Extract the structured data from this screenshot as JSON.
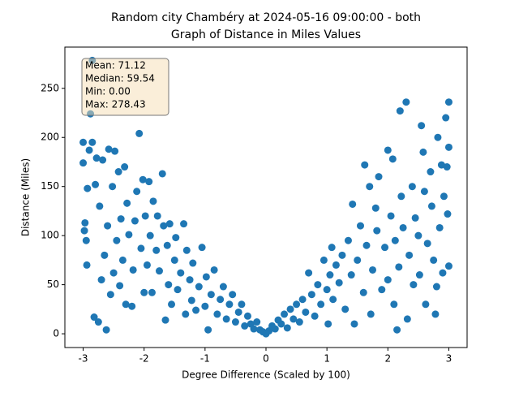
{
  "chart_data": {
    "type": "scatter",
    "title": "Random city Chambéry at 2024-05-16 09:00:00  - both",
    "subtitle": "Graph of Distance in Miles Values",
    "x_label": "Degree Difference (Scaled by 100)",
    "y_label": "Distance (Miles)",
    "annotation_lines": [
      "Mean: 71.12",
      "Median: 59.54",
      "Min: 0.00",
      "Max: 278.43"
    ],
    "color": "#1f77b4",
    "xlim": [
      -3.3,
      3.3
    ],
    "ylim": [
      -14,
      292
    ],
    "xticks": [
      -3,
      -2,
      -1,
      0,
      1,
      2,
      3
    ],
    "yticks": [
      0,
      50,
      100,
      150,
      200,
      250
    ],
    "x": [
      -3,
      -3,
      -2.98,
      -2.97,
      -2.95,
      -2.94,
      -2.93,
      -2.9,
      -2.88,
      -2.85,
      -2.85,
      -2.82,
      -2.8,
      -2.78,
      -2.75,
      -2.73,
      -2.7,
      -2.68,
      -2.65,
      -2.62,
      -2.6,
      -2.58,
      -2.55,
      -2.52,
      -2.5,
      -2.48,
      -2.45,
      -2.42,
      -2.4,
      -2.38,
      -2.35,
      -2.32,
      -2.3,
      -2.28,
      -2.25,
      -2.2,
      -2.18,
      -2.15,
      -2.12,
      -2.08,
      -2.05,
      -2.02,
      -2,
      -1.98,
      -1.95,
      -1.92,
      -1.9,
      -1.87,
      -1.85,
      -1.8,
      -1.78,
      -1.75,
      -1.7,
      -1.68,
      -1.65,
      -1.62,
      -1.6,
      -1.58,
      -1.55,
      -1.5,
      -1.48,
      -1.45,
      -1.4,
      -1.35,
      -1.32,
      -1.3,
      -1.25,
      -1.22,
      -1.2,
      -1.15,
      -1.1,
      -1.05,
      -1,
      -0.98,
      -0.95,
      -0.9,
      -0.85,
      -0.8,
      -0.75,
      -0.7,
      -0.65,
      -0.6,
      -0.55,
      -0.5,
      -0.45,
      -0.4,
      -0.35,
      -0.3,
      -0.25,
      -0.2,
      -0.15,
      -0.1,
      -0.05,
      0,
      0.05,
      0.1,
      0.15,
      0.2,
      0.25,
      0.3,
      0.35,
      0.4,
      0.45,
      0.5,
      0.55,
      0.6,
      0.65,
      0.7,
      0.75,
      0.8,
      0.85,
      0.9,
      0.95,
      1,
      1.02,
      1.05,
      1.08,
      1.1,
      1.15,
      1.2,
      1.25,
      1.3,
      1.35,
      1.4,
      1.42,
      1.45,
      1.5,
      1.55,
      1.6,
      1.62,
      1.65,
      1.7,
      1.72,
      1.75,
      1.8,
      1.82,
      1.85,
      1.9,
      1.95,
      2,
      2,
      2.05,
      2.08,
      2.1,
      2.12,
      2.15,
      2.18,
      2.2,
      2.22,
      2.25,
      2.3,
      2.32,
      2.35,
      2.4,
      2.42,
      2.45,
      2.5,
      2.52,
      2.55,
      2.58,
      2.6,
      2.62,
      2.65,
      2.7,
      2.72,
      2.75,
      2.78,
      2.8,
      2.82,
      2.85,
      2.88,
      2.9,
      2.92,
      2.95,
      2.97,
      3,
      3,
      3,
      2.98
    ],
    "y": [
      195,
      174,
      105,
      113,
      95,
      70,
      148,
      187,
      224,
      278.43,
      195,
      17,
      152,
      179,
      12,
      130,
      55,
      177,
      80,
      4,
      110,
      188,
      40,
      150,
      62,
      186,
      95,
      165,
      49,
      117,
      75,
      170,
      30,
      133,
      101,
      28,
      65,
      115,
      145,
      204,
      87,
      157,
      42,
      120,
      70,
      155,
      100,
      42,
      135,
      85,
      120,
      64,
      163,
      110,
      14,
      90,
      50,
      112,
      30,
      75,
      98,
      45,
      62,
      112,
      20,
      85,
      55,
      34,
      72,
      24,
      48,
      88,
      28,
      58,
      4,
      40,
      65,
      20,
      35,
      48,
      15,
      30,
      40,
      12,
      22,
      30,
      8,
      18,
      10,
      5,
      12,
      4,
      2,
      0,
      3,
      8,
      5,
      14,
      10,
      20,
      6,
      25,
      15,
      30,
      12,
      35,
      22,
      62,
      40,
      18,
      50,
      30,
      75,
      45,
      10,
      60,
      88,
      35,
      70,
      52,
      80,
      25,
      95,
      60,
      132,
      10,
      75,
      110,
      42,
      172,
      90,
      150,
      20,
      65,
      128,
      105,
      160,
      45,
      88,
      187,
      55,
      120,
      178,
      30,
      95,
      4,
      68,
      227,
      140,
      108,
      236,
      15,
      80,
      150,
      50,
      118,
      100,
      60,
      212,
      185,
      145,
      30,
      92,
      165,
      130,
      75,
      20,
      48,
      200,
      108,
      172,
      62,
      140,
      220,
      170,
      236,
      190,
      69,
      122
    ]
  }
}
